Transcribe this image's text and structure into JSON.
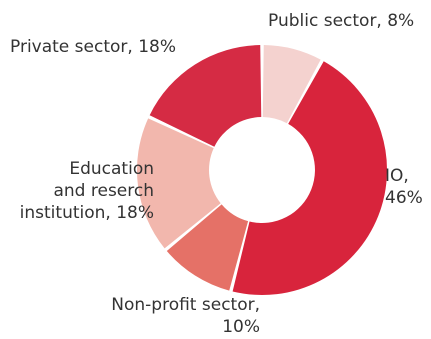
{
  "chart_data": {
    "type": "pie",
    "variant": "donut",
    "title": "",
    "slices": [
      {
        "key": "public",
        "label": "Public sector, 8%",
        "value": 8,
        "color": "#f4d2cf"
      },
      {
        "key": "io",
        "label": "IO,\n46%",
        "value": 46,
        "color": "#d8243c"
      },
      {
        "key": "nonprofit",
        "label": "Non-profit sector,\n10%",
        "value": 10,
        "color": "#e57167"
      },
      {
        "key": "education",
        "label": "Education\nand reserch\ninstitution, 18%",
        "value": 18,
        "color": "#f2b7ad"
      },
      {
        "key": "private",
        "label": "Private sector, 18%",
        "value": 18,
        "color": "#d52b44"
      }
    ],
    "legend": "none",
    "start_angle_deg": 0,
    "direction": "clockwise"
  }
}
